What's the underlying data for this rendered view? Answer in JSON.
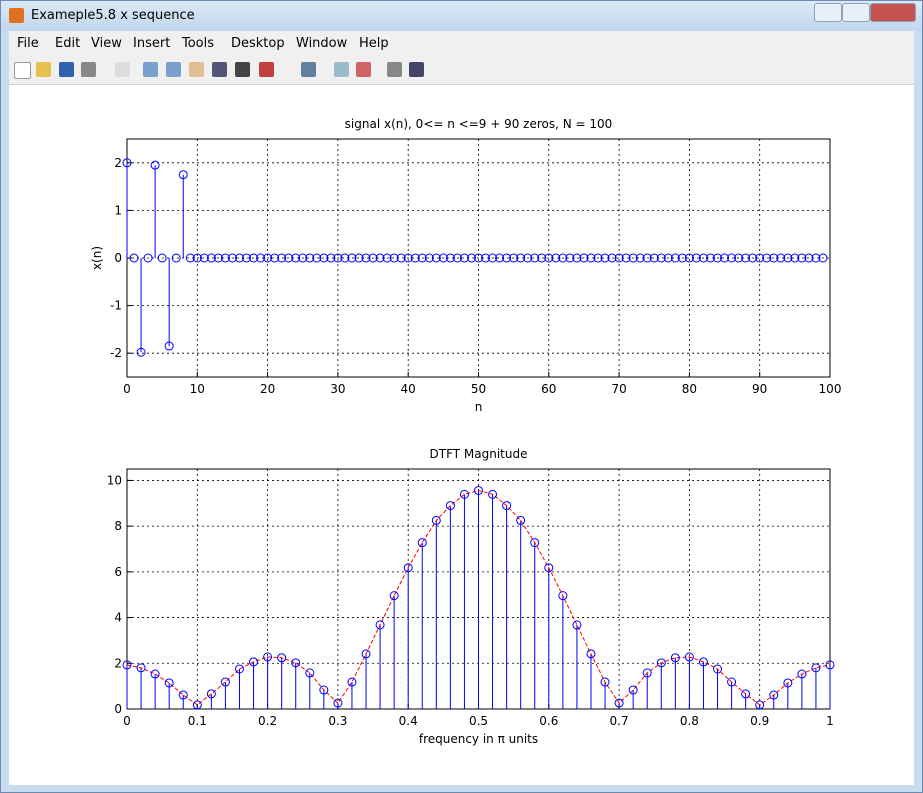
{
  "window": {
    "title": "Exameple5.8 x sequence",
    "menu": [
      "File",
      "Edit",
      "View",
      "Insert",
      "Tools",
      "Desktop",
      "Window",
      "Help"
    ]
  },
  "chart_data": [
    {
      "type": "stem",
      "title": "signal x(n), 0<= n <=9 + 90 zeros, N = 100",
      "x_label": "n",
      "y_label": "x(n)",
      "x": [
        0,
        1,
        2,
        3,
        4,
        5,
        6,
        7,
        8,
        9,
        10,
        11,
        12,
        13,
        14,
        15,
        16,
        17,
        18,
        19,
        20,
        21,
        22,
        23,
        24,
        25,
        26,
        27,
        28,
        29,
        30,
        31,
        32,
        33,
        34,
        35,
        36,
        37,
        38,
        39,
        40,
        41,
        42,
        43,
        44,
        45,
        46,
        47,
        48,
        49,
        50,
        51,
        52,
        53,
        54,
        55,
        56,
        57,
        58,
        59,
        60,
        61,
        62,
        63,
        64,
        65,
        66,
        67,
        68,
        69,
        70,
        71,
        72,
        73,
        74,
        75,
        76,
        77,
        78,
        79,
        80,
        81,
        82,
        83,
        84,
        85,
        86,
        87,
        88,
        89,
        90,
        91,
        92,
        93,
        94,
        95,
        96,
        97,
        98,
        99
      ],
      "series": [
        {
          "color": "#0000ff",
          "values": [
            2,
            0,
            -1.98,
            0,
            1.95,
            0,
            -1.85,
            0,
            1.75,
            0,
            0,
            0,
            0,
            0,
            0,
            0,
            0,
            0,
            0,
            0,
            0,
            0,
            0,
            0,
            0,
            0,
            0,
            0,
            0,
            0,
            0,
            0,
            0,
            0,
            0,
            0,
            0,
            0,
            0,
            0,
            0,
            0,
            0,
            0,
            0,
            0,
            0,
            0,
            0,
            0,
            0,
            0,
            0,
            0,
            0,
            0,
            0,
            0,
            0,
            0,
            0,
            0,
            0,
            0,
            0,
            0,
            0,
            0,
            0,
            0,
            0,
            0,
            0,
            0,
            0,
            0,
            0,
            0,
            0,
            0,
            0,
            0,
            0,
            0,
            0,
            0,
            0,
            0,
            0,
            0,
            0,
            0,
            0,
            0,
            0,
            0,
            0,
            0,
            0,
            0
          ]
        }
      ],
      "xlim": [
        0,
        100
      ],
      "xticks": [
        0,
        10,
        20,
        30,
        40,
        50,
        60,
        70,
        80,
        90,
        100
      ],
      "ylim": [
        -2.5,
        2.5
      ],
      "yticks": [
        -2,
        -1,
        0,
        1,
        2
      ],
      "grid": true
    },
    {
      "type": "stem",
      "title": "DTFT Magnitude",
      "x_label": "frequency in π units",
      "x": [
        0,
        0.02,
        0.04,
        0.06,
        0.08,
        0.1,
        0.12,
        0.14,
        0.16,
        0.18,
        0.2,
        0.22,
        0.24,
        0.26,
        0.28,
        0.3,
        0.32,
        0.34,
        0.36,
        0.38,
        0.4,
        0.42,
        0.44,
        0.46,
        0.48,
        0.5,
        0.52,
        0.54,
        0.56,
        0.58,
        0.6,
        0.62,
        0.64,
        0.66,
        0.68,
        0.7,
        0.72,
        0.74,
        0.76,
        0.78,
        0.8,
        0.82,
        0.84,
        0.86,
        0.88,
        0.9,
        0.92,
        0.94,
        0.96,
        0.98,
        1
      ],
      "series": [
        {
          "color": "#0000ff",
          "line_color": "#ff0000",
          "values": [
            1.93,
            1.8,
            1.53,
            1.14,
            0.61,
            0.18,
            0.66,
            1.18,
            1.75,
            2.06,
            2.28,
            2.24,
            2.02,
            1.58,
            0.83,
            0.26,
            1.18,
            2.41,
            3.68,
            4.96,
            6.18,
            7.28,
            8.25,
            8.9,
            9.39,
            9.56,
            9.39,
            8.9,
            8.25,
            7.28,
            6.18,
            4.96,
            3.68,
            2.41,
            1.18,
            0.26,
            0.83,
            1.58,
            2.02,
            2.24,
            2.28,
            2.06,
            1.75,
            1.18,
            0.66,
            0.18,
            0.61,
            1.14,
            1.53,
            1.8,
            1.93
          ]
        }
      ],
      "xlim": [
        0,
        1
      ],
      "xticks": [
        0,
        0.1,
        0.2,
        0.3,
        0.4,
        0.5,
        0.6,
        0.7,
        0.8,
        0.9,
        1
      ],
      "ylim": [
        0,
        10.5
      ],
      "yticks": [
        0,
        2,
        4,
        6,
        8,
        10
      ],
      "grid": true
    }
  ]
}
